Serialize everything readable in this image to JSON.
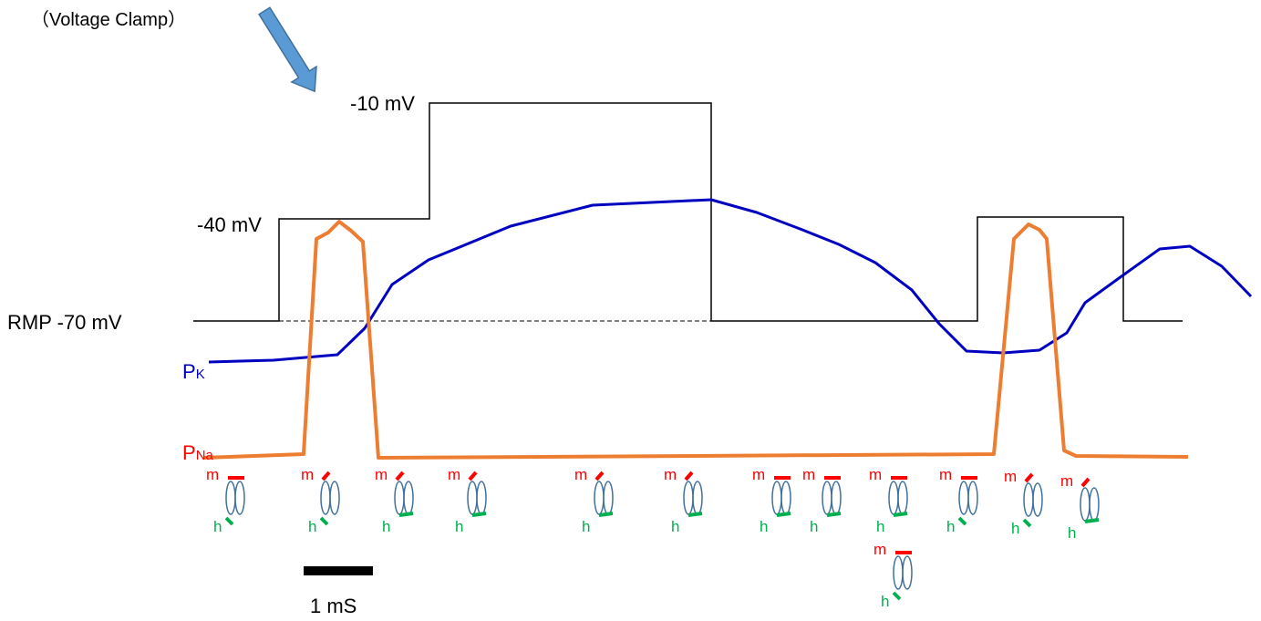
{
  "arrow_label": "（Voltage Clamp）",
  "voltage_levels": {
    "high": "-10 mV",
    "mid": "-40 mV",
    "rest": "RMP -70 mV"
  },
  "traces": {
    "pk": {
      "label": "P",
      "subscript": "K"
    },
    "pna": {
      "label": "P",
      "subscript": "Na"
    }
  },
  "channels": [
    {
      "m": "m",
      "h": "h"
    },
    {
      "m": "m",
      "h": "h"
    },
    {
      "m": "m",
      "h": "h"
    },
    {
      "m": "m",
      "h": "h"
    },
    {
      "m": "m",
      "h": "h"
    },
    {
      "m": "m",
      "h": "h"
    },
    {
      "m": "m",
      "h": "h"
    },
    {
      "m": "m",
      "h": "h"
    },
    {
      "m": "m",
      "h": "h"
    },
    {
      "m": "m",
      "h": "h"
    },
    {
      "m": "m",
      "h": "h"
    },
    {
      "m": "m",
      "h": "h"
    },
    {
      "m": "m",
      "h": "h"
    }
  ],
  "scale_bar": "1 mS"
}
